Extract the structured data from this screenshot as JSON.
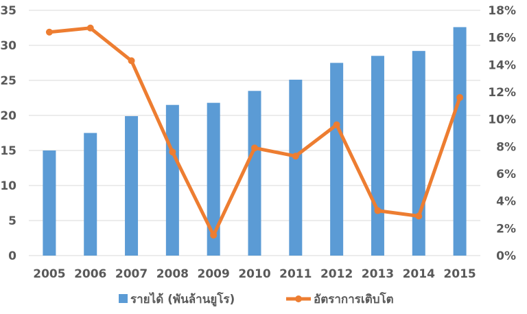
{
  "chart_data": {
    "type": "bar",
    "categories": [
      "2005",
      "2006",
      "2007",
      "2008",
      "2009",
      "2010",
      "2011",
      "2012",
      "2013",
      "2014",
      "2015"
    ],
    "series": [
      {
        "name": "รายได้ (พันล้านยูโร)",
        "type": "bar",
        "axis": "left",
        "color": "#5B9BD5",
        "values": [
          15.0,
          17.5,
          19.9,
          21.5,
          21.8,
          23.5,
          25.1,
          27.5,
          28.5,
          29.2,
          32.6
        ]
      },
      {
        "name": "อัตราการเติบโต",
        "type": "line",
        "axis": "right",
        "color": "#ED7D31",
        "values": [
          16.4,
          16.7,
          14.3,
          7.6,
          1.5,
          7.9,
          7.3,
          9.6,
          3.3,
          2.9,
          11.6
        ]
      }
    ],
    "y_left": {
      "min": 0,
      "max": 35,
      "ticks": [
        "0",
        "5",
        "10",
        "15",
        "20",
        "25",
        "30",
        "35"
      ]
    },
    "y_right": {
      "min": 0,
      "max": 18,
      "ticks": [
        "0%",
        "2%",
        "4%",
        "6%",
        "8%",
        "10%",
        "12%",
        "14%",
        "16%",
        "18%"
      ]
    },
    "grid": true,
    "legend": "bottom"
  }
}
